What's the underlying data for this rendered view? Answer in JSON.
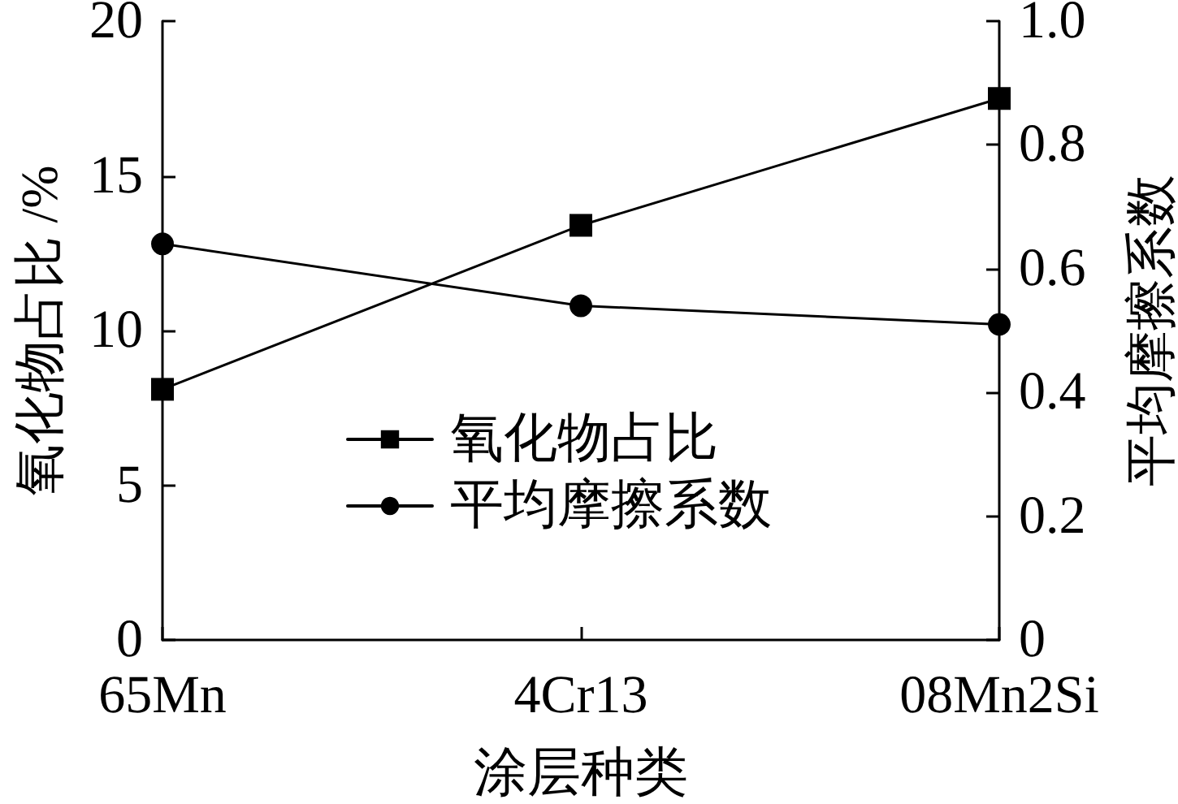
{
  "chart_data": {
    "type": "line",
    "categories": [
      "65Mn",
      "4Cr13",
      "08Mn2Si"
    ],
    "xlabel": "涂层种类",
    "ylabel": "氧化物占比 /%",
    "y2label": "平均摩擦系数",
    "series": [
      {
        "name": "氧化物占比",
        "color": "#000000",
        "marker": "square",
        "values": [
          8.1,
          13.4,
          17.5
        ]
      },
      {
        "name": "平均摩擦系数",
        "color": "#000000",
        "marker": "circle",
        "axis": "y2",
        "values": [
          0.64,
          0.54,
          0.51
        ]
      }
    ],
    "ylim": [
      0,
      20
    ],
    "yticks": [
      0,
      5,
      10,
      15,
      20
    ],
    "y2lim": [
      0,
      1
    ],
    "y2ticks": [
      0,
      0.2,
      0.4,
      0.6,
      0.8,
      {
        "value": 1,
        "label": "1.0"
      }
    ],
    "grid": false,
    "legend": "center"
  }
}
